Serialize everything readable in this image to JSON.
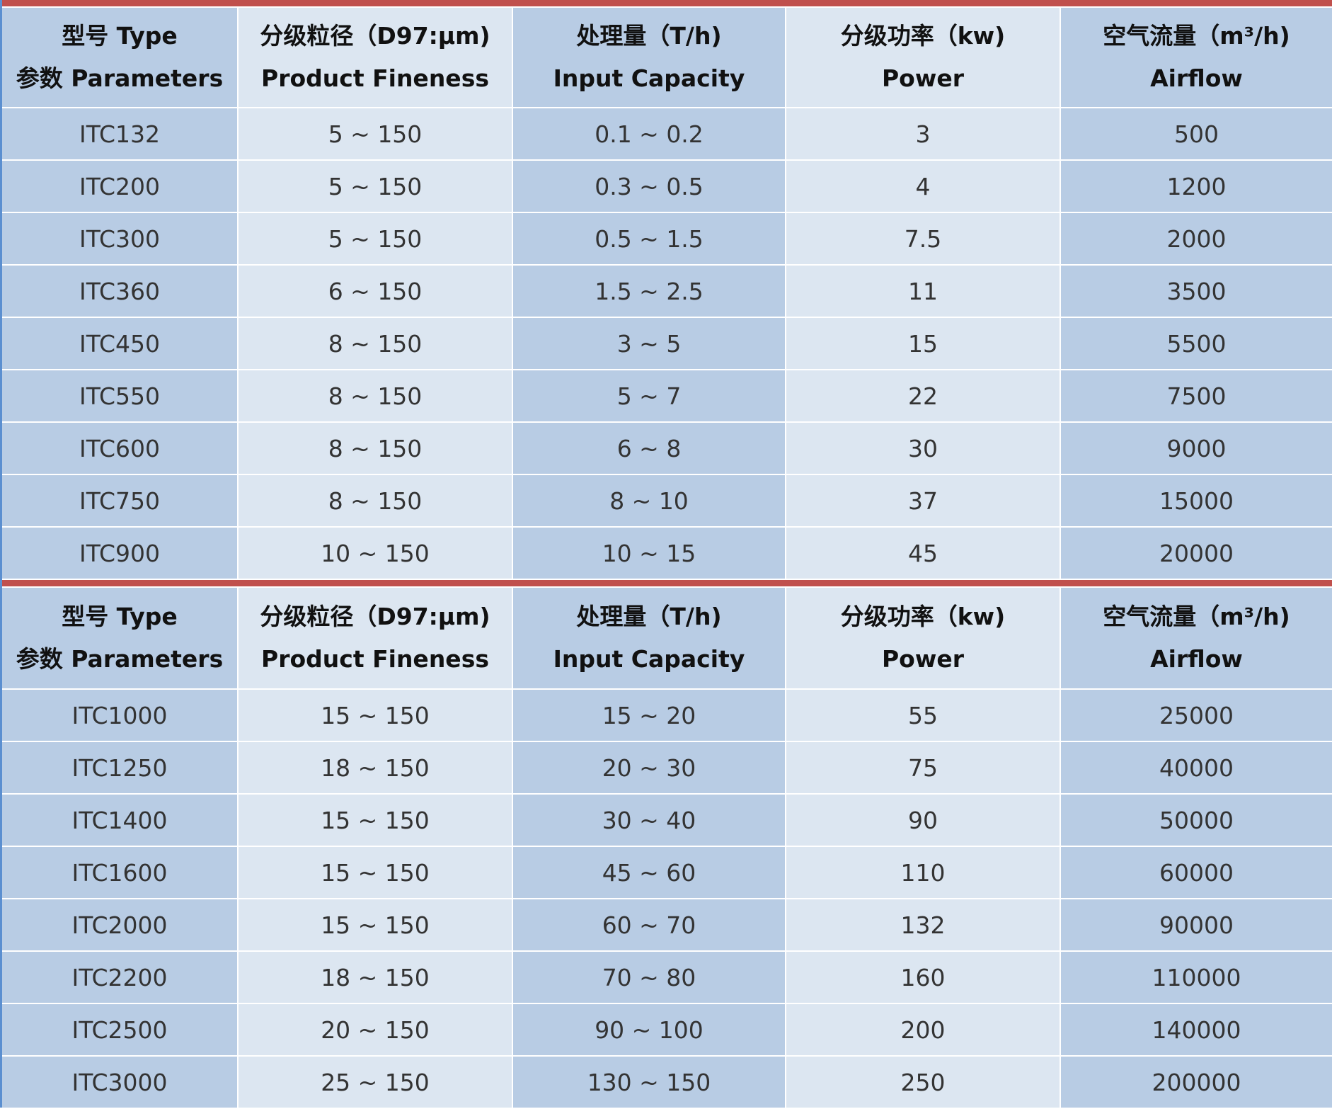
{
  "headers": [
    {
      "cn": "型号 Type",
      "en": "参数 Parameters"
    },
    {
      "cn": "分级粒径（D97:μm)",
      "en": "Product Fineness"
    },
    {
      "cn": "处理量（T/h)",
      "en": "Input Capacity"
    },
    {
      "cn": "分级功率（kw)",
      "en": "Power"
    },
    {
      "cn": "空气流量（m³/h)",
      "en": "Airflow"
    }
  ],
  "tables": [
    {
      "rows": [
        [
          "ITC132",
          "5 ~ 150",
          "0.1 ~ 0.2",
          "3",
          "500"
        ],
        [
          "ITC200",
          "5 ~ 150",
          "0.3 ~ 0.5",
          "4",
          "1200"
        ],
        [
          "ITC300",
          "5 ~ 150",
          "0.5 ~ 1.5",
          "7.5",
          "2000"
        ],
        [
          "ITC360",
          "6 ~ 150",
          "1.5 ~ 2.5",
          "11",
          "3500"
        ],
        [
          "ITC450",
          "8 ~ 150",
          "3 ~ 5",
          "15",
          "5500"
        ],
        [
          "ITC550",
          "8 ~ 150",
          "5 ~ 7",
          "22",
          "7500"
        ],
        [
          "ITC600",
          "8 ~ 150",
          "6 ~ 8",
          "30",
          "9000"
        ],
        [
          "ITC750",
          "8 ~ 150",
          "8 ~ 10",
          "37",
          "15000"
        ],
        [
          "ITC900",
          "10 ~ 150",
          "10 ~ 15",
          "45",
          "20000"
        ]
      ]
    },
    {
      "rows": [
        [
          "ITC1000",
          "15 ~ 150",
          "15 ~ 20",
          "55",
          "25000"
        ],
        [
          "ITC1250",
          "18 ~ 150",
          "20 ~ 30",
          "75",
          "40000"
        ],
        [
          "ITC1400",
          "15 ~ 150",
          "30 ~ 40",
          "90",
          "50000"
        ],
        [
          "ITC1600",
          "15 ~ 150",
          "45 ~ 60",
          "110",
          "60000"
        ],
        [
          "ITC2000",
          "15 ~ 150",
          "60 ~ 70",
          "132",
          "90000"
        ],
        [
          "ITC2200",
          "18 ~ 150",
          "70 ~ 80",
          "160",
          "110000"
        ],
        [
          "ITC2500",
          "20 ~ 150",
          "90 ~ 100",
          "200",
          "140000"
        ],
        [
          "ITC3000",
          "25 ~ 150",
          "130 ~ 150",
          "250",
          "200000"
        ]
      ]
    }
  ],
  "colors": {
    "accent_bar": "#c0504d",
    "dark_cell": "#b8cce4",
    "light_cell": "#dce6f1"
  }
}
